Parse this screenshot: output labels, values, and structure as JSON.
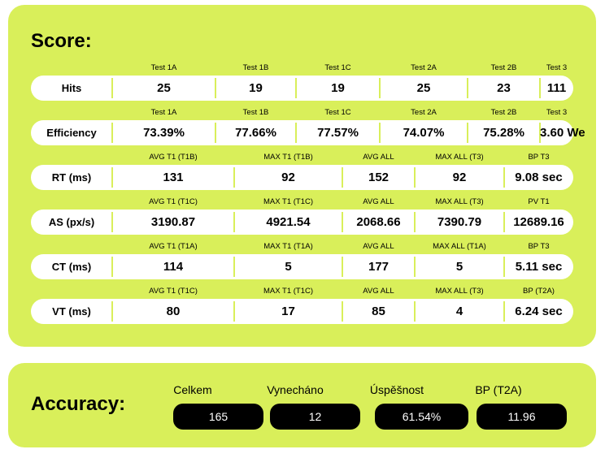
{
  "score": {
    "title": "Score:",
    "rows": [
      {
        "label": "Hits",
        "headers": [
          "Test 1A",
          "Test 1B",
          "Test 1C",
          "Test 2A",
          "Test 2B",
          "Test 3"
        ],
        "values": [
          "25",
          "19",
          "19",
          "25",
          "23",
          "111"
        ]
      },
      {
        "label": "Efficiency",
        "headers": [
          "Test 1A",
          "Test 1B",
          "Test 1C",
          "Test 2A",
          "Test 2B",
          "Test 3"
        ],
        "values": [
          "73.39%",
          "77.66%",
          "77.57%",
          "74.07%",
          "75.28%",
          "3.60 We"
        ]
      },
      {
        "label": "RT (ms)",
        "headers": [
          "AVG T1 (T1B)",
          "MAX T1 (T1B)",
          "AVG ALL",
          "MAX ALL (T3)",
          "BP T3"
        ],
        "values": [
          "131",
          "92",
          "152",
          "92",
          "9.08 sec"
        ]
      },
      {
        "label": "AS (px/s)",
        "headers": [
          "AVG T1 (T1C)",
          "MAX T1 (T1C)",
          "AVG ALL",
          "MAX ALL (T3)",
          "PV T1"
        ],
        "values": [
          "3190.87",
          "4921.54",
          "2068.66",
          "7390.79",
          "12689.16"
        ]
      },
      {
        "label": "CT (ms)",
        "headers": [
          "AVG T1 (T1A)",
          "MAX T1 (T1A)",
          "AVG ALL",
          "MAX ALL (T1A)",
          "BP T3"
        ],
        "values": [
          "114",
          "5",
          "177",
          "5",
          "5.11 sec"
        ]
      },
      {
        "label": "VT (ms)",
        "headers": [
          "AVG T1 (T1C)",
          "MAX T1 (T1C)",
          "AVG ALL",
          "MAX ALL (T3)",
          "BP (T2A)"
        ],
        "values": [
          "80",
          "17",
          "85",
          "4",
          "6.24 sec"
        ]
      }
    ]
  },
  "accuracy": {
    "title": "Accuracy:",
    "items": [
      {
        "label": "Celkem",
        "value": "165"
      },
      {
        "label": "Vynecháno",
        "value": "12"
      },
      {
        "label": "Úspěšnost",
        "value": "61.54%"
      },
      {
        "label": "BP (T2A)",
        "value": "11.96"
      }
    ]
  }
}
